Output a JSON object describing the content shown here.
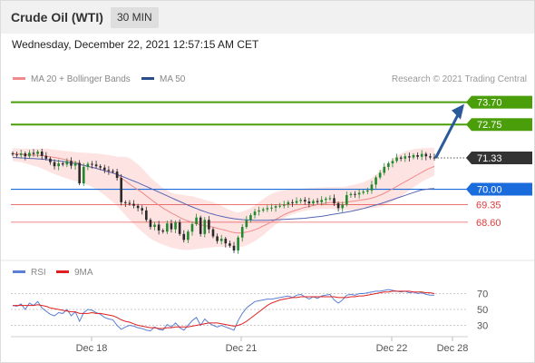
{
  "header": {
    "title": "Crude Oil (WTI)",
    "interval": "30 MIN",
    "timestamp": "Wednesday, December 22, 2021 12:57:15 AM CET"
  },
  "legend": {
    "bollinger": "MA 20 + Bollinger Bands",
    "ma50": "MA 50",
    "credit": "Research © 2021 Trading Central",
    "rsi": "RSI",
    "ma9": "9MA"
  },
  "colors": {
    "green": "#4a9e0a",
    "blue": "#1a6bdc",
    "red": "#e23b3b",
    "dark": "#333333",
    "bollinger_fill": "#fde0df",
    "ma50": "#5866b3",
    "arrow": "#2a5a9a"
  },
  "chart_data": [
    {
      "type": "candlestick",
      "x_tick_labels": [
        "Dec 18",
        "Dec 21",
        "Dec 22",
        "Dec 28"
      ],
      "ylim": [
        67.4,
        74.3
      ],
      "levels": [
        {
          "label": "73.70",
          "value": 73.7,
          "kind": "target",
          "color": "#4a9e0a"
        },
        {
          "label": "72.75",
          "value": 72.75,
          "kind": "target",
          "color": "#4a9e0a"
        },
        {
          "label": "71.33",
          "value": 71.33,
          "kind": "last",
          "color": "#333333"
        },
        {
          "label": "70.00",
          "value": 70.0,
          "kind": "pivot",
          "color": "#1a6bdc"
        },
        {
          "label": "69.35",
          "value": 69.35,
          "kind": "support",
          "color": "#e23b3b"
        },
        {
          "label": "68.60",
          "value": 68.6,
          "kind": "support",
          "color": "#e23b3b"
        }
      ],
      "close": [
        71.48,
        71.45,
        71.52,
        71.4,
        71.55,
        71.5,
        71.6,
        71.42,
        71.3,
        71.15,
        70.98,
        71.1,
        71.05,
        71.2,
        71.0,
        71.12,
        70.25,
        70.95,
        71.08,
        71.05,
        70.98,
        70.92,
        70.82,
        70.78,
        70.75,
        70.48,
        69.45,
        69.42,
        69.38,
        69.3,
        69.2,
        69.1,
        68.7,
        68.4,
        68.5,
        68.25,
        68.2,
        68.55,
        68.3,
        68.6,
        68.1,
        67.85,
        68.2,
        68.52,
        68.8,
        68.1,
        68.7,
        68.3,
        68.0,
        67.8,
        67.9,
        67.7,
        67.6,
        67.4,
        67.95,
        68.4,
        68.7,
        68.9,
        69.05,
        69.1,
        69.15,
        69.2,
        69.22,
        69.28,
        69.3,
        69.35,
        69.45,
        69.42,
        69.5,
        69.55,
        69.48,
        69.4,
        69.5,
        69.45,
        69.55,
        69.6,
        69.62,
        69.4,
        69.2,
        69.35,
        69.75,
        69.8,
        69.78,
        69.85,
        69.9,
        69.95,
        70.2,
        70.5,
        70.7,
        70.95,
        71.1,
        71.2,
        71.35,
        71.3,
        71.4,
        71.35,
        71.45,
        71.38,
        71.5,
        71.4,
        71.35,
        71.33
      ],
      "ma20": [
        71.52,
        71.5,
        71.49,
        71.47,
        71.46,
        71.45,
        71.44,
        71.43,
        71.41,
        71.38,
        71.35,
        71.32,
        71.28,
        71.24,
        71.2,
        71.16,
        71.08,
        71.02,
        70.97,
        70.93,
        70.89,
        70.84,
        70.8,
        70.75,
        70.7,
        70.62,
        70.48,
        70.35,
        70.22,
        70.1,
        69.98,
        69.86,
        69.72,
        69.58,
        69.45,
        69.33,
        69.2,
        69.1,
        68.99,
        68.9,
        68.8,
        68.72,
        68.65,
        68.6,
        68.54,
        68.49,
        68.46,
        68.42,
        68.39,
        68.34,
        68.3,
        68.26,
        68.2,
        68.16,
        68.14,
        68.15,
        68.18,
        68.22,
        68.28,
        68.35,
        68.44,
        68.52,
        68.62,
        68.72,
        68.82,
        68.92,
        69.0,
        69.06,
        69.12,
        69.18,
        69.23,
        69.27,
        69.31,
        69.35,
        69.38,
        69.41,
        69.44,
        69.44,
        69.43,
        69.43,
        69.45,
        69.48,
        69.5,
        69.53,
        69.56,
        69.58,
        69.62,
        69.68,
        69.75,
        69.83,
        69.92,
        70.02,
        70.12,
        70.22,
        70.32,
        70.42,
        70.52,
        70.62,
        70.72,
        70.82,
        70.9,
        70.97
      ],
      "upper_band": [
        71.75,
        71.74,
        71.73,
        71.72,
        71.72,
        71.71,
        71.72,
        71.73,
        71.72,
        71.7,
        71.68,
        71.66,
        71.64,
        71.62,
        71.6,
        71.58,
        71.56,
        71.55,
        71.54,
        71.53,
        71.52,
        71.5,
        71.48,
        71.45,
        71.42,
        71.38,
        71.38,
        71.38,
        71.32,
        71.2,
        71.05,
        70.9,
        70.7,
        70.5,
        70.35,
        70.2,
        70.05,
        69.95,
        69.85,
        69.8,
        69.78,
        69.75,
        69.72,
        69.7,
        69.65,
        69.6,
        69.55,
        69.5,
        69.45,
        69.38,
        69.3,
        69.2,
        69.12,
        69.05,
        69.02,
        69.05,
        69.12,
        69.2,
        69.32,
        69.45,
        69.58,
        69.7,
        69.8,
        69.88,
        69.92,
        69.95,
        69.97,
        69.99,
        70.0,
        70.02,
        70.04,
        70.05,
        70.06,
        70.07,
        70.08,
        70.09,
        70.1,
        70.1,
        70.1,
        70.1,
        70.12,
        70.16,
        70.2,
        70.25,
        70.3,
        70.38,
        70.48,
        70.62,
        70.78,
        70.95,
        71.12,
        71.28,
        71.42,
        71.52,
        71.6,
        71.66,
        71.7,
        71.72,
        71.74,
        71.75,
        71.76,
        71.76
      ],
      "lower_band": [
        71.2,
        71.18,
        71.15,
        71.1,
        71.05,
        71.0,
        70.95,
        70.88,
        70.8,
        70.72,
        70.65,
        70.58,
        70.52,
        70.46,
        70.4,
        70.35,
        70.3,
        70.24,
        70.18,
        70.1,
        70.0,
        69.88,
        69.75,
        69.6,
        69.45,
        69.3,
        69.1,
        68.9,
        68.7,
        68.52,
        68.35,
        68.2,
        68.05,
        67.9,
        67.8,
        67.72,
        67.65,
        67.58,
        67.52,
        67.48,
        67.45,
        67.42,
        67.42,
        67.44,
        67.46,
        67.48,
        67.5,
        67.52,
        67.54,
        67.55,
        67.55,
        67.54,
        67.52,
        67.5,
        67.52,
        67.56,
        67.62,
        67.7,
        67.8,
        67.92,
        68.05,
        68.2,
        68.35,
        68.5,
        68.64,
        68.76,
        68.86,
        68.94,
        69.0,
        69.05,
        69.09,
        69.12,
        69.14,
        69.15,
        69.16,
        69.16,
        69.16,
        69.15,
        69.14,
        69.13,
        69.12,
        69.12,
        69.12,
        69.14,
        69.16,
        69.18,
        69.2,
        69.22,
        69.25,
        69.3,
        69.38,
        69.48,
        69.58,
        69.7,
        69.82,
        69.95,
        70.08,
        70.2,
        70.32,
        70.42,
        70.5,
        70.58
      ],
      "ma50": [
        71.35,
        71.34,
        71.33,
        71.32,
        71.31,
        71.3,
        71.29,
        71.28,
        71.26,
        71.24,
        71.22,
        71.2,
        71.18,
        71.15,
        71.12,
        71.09,
        71.05,
        71.01,
        70.97,
        70.93,
        70.89,
        70.84,
        70.79,
        70.74,
        70.69,
        70.63,
        70.56,
        70.49,
        70.42,
        70.35,
        70.28,
        70.2,
        70.12,
        70.04,
        69.96,
        69.88,
        69.8,
        69.72,
        69.64,
        69.56,
        69.48,
        69.4,
        69.32,
        69.25,
        69.18,
        69.11,
        69.05,
        68.99,
        68.94,
        68.89,
        68.85,
        68.81,
        68.78,
        68.75,
        68.73,
        68.71,
        68.7,
        68.69,
        68.68,
        68.68,
        68.68,
        68.68,
        68.69,
        68.7,
        68.71,
        68.72,
        68.73,
        68.74,
        68.75,
        68.76,
        68.77,
        68.79,
        68.81,
        68.83,
        68.85,
        68.88,
        68.91,
        68.94,
        68.97,
        69.0,
        69.03,
        69.06,
        69.1,
        69.14,
        69.18,
        69.23,
        69.28,
        69.33,
        69.38,
        69.44,
        69.5,
        69.56,
        69.62,
        69.68,
        69.74,
        69.8,
        69.86,
        69.92,
        69.97,
        70.0,
        70.02,
        70.03
      ]
    },
    {
      "type": "line",
      "y_tick_labels": [
        "70",
        "50",
        "30"
      ],
      "ylim": [
        18,
        82
      ],
      "series": [
        {
          "name": "RSI",
          "color": "#5b7fd6",
          "values": [
            55,
            54,
            57,
            50,
            58,
            55,
            60,
            52,
            48,
            44,
            42,
            46,
            45,
            50,
            42,
            47,
            35,
            46,
            50,
            49,
            46,
            44,
            40,
            38,
            37,
            30,
            25,
            28,
            30,
            29,
            27,
            26,
            24,
            23,
            28,
            25,
            24,
            31,
            28,
            33,
            27,
            24,
            30,
            36,
            40,
            30,
            38,
            33,
            30,
            28,
            30,
            28,
            26,
            24,
            36,
            45,
            52,
            56,
            60,
            61,
            62,
            63,
            63,
            64,
            65,
            66,
            67,
            65,
            68,
            69,
            66,
            63,
            66,
            64,
            67,
            68,
            69,
            62,
            58,
            62,
            68,
            69,
            68,
            70,
            70,
            71,
            72,
            73,
            73,
            74,
            75,
            74,
            73,
            72,
            73,
            71,
            72,
            70,
            71,
            69,
            68,
            68
          ]
        },
        {
          "name": "9MA",
          "color": "#e02020",
          "values": [
            55,
            55,
            55,
            55,
            55,
            55,
            56,
            55,
            54,
            52,
            51,
            50,
            49,
            48,
            47,
            47,
            45,
            45,
            45,
            46,
            45,
            45,
            44,
            43,
            42,
            40,
            37,
            35,
            34,
            32,
            30,
            29,
            28,
            27,
            27,
            26,
            26,
            27,
            27,
            28,
            28,
            28,
            28,
            29,
            30,
            31,
            32,
            33,
            33,
            33,
            32,
            31,
            30,
            29,
            30,
            32,
            35,
            39,
            43,
            47,
            51,
            55,
            58,
            60,
            62,
            63,
            64,
            65,
            65,
            66,
            66,
            66,
            66,
            66,
            66,
            66,
            66,
            66,
            65,
            65,
            65,
            66,
            66,
            67,
            67,
            68,
            69,
            70,
            71,
            72,
            72,
            73,
            73,
            73,
            73,
            73,
            72,
            72,
            72,
            71,
            71,
            70
          ]
        }
      ]
    }
  ]
}
